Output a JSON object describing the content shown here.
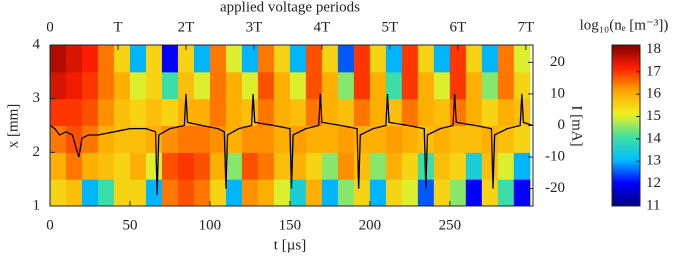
{
  "chart_data": {
    "type": "heatmap",
    "title": "applied voltage periods",
    "xlabel": "t [µs]",
    "ylabel": "x [mm]",
    "y2label": "I [mA]",
    "colorbar_label": "log₁₀(nₑ [m⁻³])",
    "xlim": [
      0,
      302
    ],
    "xticks": [
      0,
      50,
      100,
      150,
      200,
      250
    ],
    "x2ticks": [
      {
        "value": 0,
        "label": "0"
      },
      {
        "value": 42.5,
        "label": "T"
      },
      {
        "value": 85,
        "label": "2T"
      },
      {
        "value": 127.5,
        "label": "3T"
      },
      {
        "value": 170,
        "label": "4T"
      },
      {
        "value": 212.5,
        "label": "5T"
      },
      {
        "value": 255,
        "label": "6T"
      },
      {
        "value": 297.5,
        "label": "7T"
      }
    ],
    "ylim": [
      1,
      4
    ],
    "yticks": [
      1,
      2,
      3,
      4
    ],
    "y2lim": [
      -25.5,
      25.5
    ],
    "y2ticks": [
      -20,
      -10,
      0,
      10,
      20
    ],
    "zlim": [
      11,
      18.2
    ],
    "zticks": [
      11,
      12,
      13,
      14,
      15,
      16,
      17,
      18
    ],
    "colormap": [
      "#00007f",
      "#0000ff",
      "#00bfff",
      "#40e0a0",
      "#f0f020",
      "#ffa500",
      "#ff2000",
      "#7f0000"
    ],
    "xbins": [
      0,
      10,
      20,
      30,
      40,
      50,
      60,
      70,
      80,
      90,
      100,
      110,
      120,
      130,
      140,
      150,
      160,
      170,
      180,
      190,
      200,
      210,
      220,
      230,
      240,
      250,
      260,
      270,
      280,
      290,
      300
    ],
    "ybins": [
      1,
      1.5,
      2,
      2.5,
      3,
      3.5,
      4
    ],
    "z": [
      [
        15.5,
        15.8,
        13,
        14,
        15.5,
        15.5,
        13,
        16.5,
        16.8,
        16.5,
        15.5,
        13,
        16.3,
        16,
        15,
        13.5,
        16,
        13,
        14.5,
        15.5,
        13,
        15.5,
        15,
        12.5,
        15.5,
        14.5,
        12,
        15.5,
        14,
        12
      ],
      [
        16,
        16.5,
        16,
        15.8,
        15.5,
        16,
        15,
        16.8,
        17,
        16.8,
        16,
        14.5,
        16.8,
        16.5,
        15.8,
        16,
        15.5,
        14.5,
        16.3,
        15.8,
        14.5,
        16,
        15.5,
        14,
        15.8,
        15.5,
        13.5,
        15.8,
        15,
        13
      ],
      [
        16.5,
        16.8,
        16.5,
        16,
        15.8,
        15.8,
        16,
        16.3,
        16.5,
        16.5,
        16.3,
        16,
        16.3,
        16.3,
        16,
        16.2,
        16,
        16,
        16.2,
        16,
        16,
        16.2,
        16,
        15.8,
        16,
        15.8,
        15.8,
        16,
        15.8,
        15.5
      ],
      [
        17,
        17,
        16.8,
        16.3,
        15.8,
        15.5,
        15.8,
        15.5,
        16,
        16,
        16.5,
        16,
        15.8,
        16.5,
        16,
        15.8,
        16.5,
        16,
        15.8,
        16.5,
        16,
        15.8,
        16.5,
        16,
        15.8,
        16.5,
        16,
        15.5,
        16,
        15.8
      ],
      [
        17.5,
        17.3,
        17,
        16.5,
        16,
        15,
        15.5,
        14,
        15.8,
        15,
        16.5,
        16,
        15,
        16.8,
        16,
        15,
        16.8,
        16,
        14.5,
        17,
        16,
        14,
        17,
        16,
        15,
        17,
        16,
        14.5,
        16.5,
        15.5
      ],
      [
        17.8,
        17.5,
        17.2,
        16.5,
        15.5,
        13,
        15.5,
        12,
        15.5,
        13,
        16.5,
        15,
        13,
        16.5,
        15.5,
        13,
        16.8,
        15.5,
        12.5,
        17,
        15.5,
        13,
        17,
        15.5,
        13,
        17,
        15.5,
        13,
        16.5,
        15
      ]
    ],
    "current": {
      "color": "#000000",
      "x": [
        0,
        3,
        6,
        10,
        14,
        18,
        20,
        24,
        30,
        40,
        50,
        60,
        66,
        67,
        68,
        75,
        84,
        85,
        86,
        95,
        105,
        109,
        110,
        111,
        118,
        126,
        127,
        128,
        140,
        150,
        151,
        152,
        160,
        168,
        169,
        170,
        182,
        192,
        193,
        194,
        202,
        210,
        211,
        212,
        224,
        234,
        235,
        236,
        244,
        252,
        253,
        254,
        266,
        276,
        277,
        278,
        286,
        294,
        295,
        296,
        302
      ],
      "values": [
        0,
        -1,
        -3,
        -2,
        -3,
        -10,
        -4,
        -3,
        -3,
        -2,
        -1,
        -1,
        -2,
        -22,
        -3,
        -1,
        0,
        10,
        1,
        0,
        -1,
        -2,
        -20,
        -3,
        -1,
        0,
        10,
        1,
        0,
        -1,
        -20,
        -3,
        -1,
        0,
        10,
        1,
        0,
        -1,
        -20,
        -3,
        -1,
        0,
        10,
        1,
        0,
        -1,
        -20,
        -3,
        -1,
        0,
        10,
        1,
        0,
        -1,
        -20,
        -3,
        -1,
        0,
        10,
        1,
        0
      ]
    }
  }
}
